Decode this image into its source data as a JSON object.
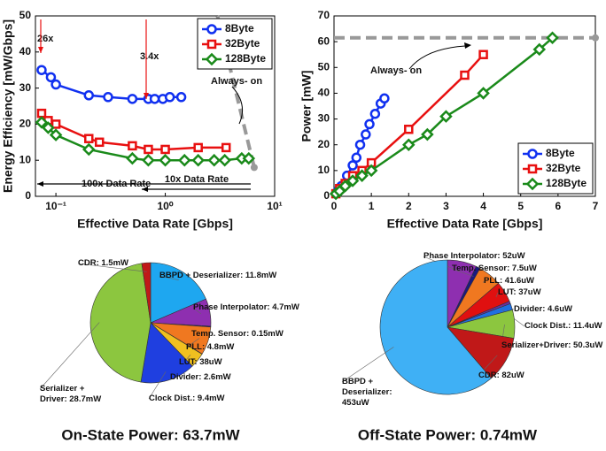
{
  "chart_data": [
    {
      "type": "line",
      "xlabel": "Effective Data Rate [Gbps]",
      "ylabel": "Energy Efficiency [mW/Gbps]",
      "xlog": true,
      "xlim": [
        0.065,
        10
      ],
      "ylim": [
        0,
        50
      ],
      "xticks": [
        {
          "value": 0.1,
          "label": "10⁻¹"
        },
        {
          "value": 1,
          "label": "10⁰"
        },
        {
          "value": 10,
          "label": "10¹"
        }
      ],
      "yticks": [
        0,
        10,
        20,
        30,
        40,
        50
      ],
      "legend": "upper right",
      "series": [
        {
          "name": "8Byte",
          "color": "#1030f0",
          "marker": "circle",
          "x": [
            0.074,
            0.09,
            0.1,
            0.2,
            0.3,
            0.5,
            0.7,
            0.8,
            0.95,
            1.1,
            1.4
          ],
          "values": [
            35,
            33,
            31,
            28,
            27.5,
            27,
            27,
            27,
            27,
            27.5,
            27.5
          ]
        },
        {
          "name": "32Byte",
          "color": "#e81010",
          "marker": "square",
          "x": [
            0.074,
            0.085,
            0.1,
            0.2,
            0.25,
            0.5,
            0.7,
            1,
            2,
            3.6
          ],
          "values": [
            23,
            21,
            20,
            16,
            15,
            14,
            13,
            13,
            13.5,
            13.5
          ]
        },
        {
          "name": "128Byte",
          "color": "#1a8a1a",
          "marker": "diamond",
          "x": [
            0.074,
            0.085,
            0.1,
            0.2,
            0.5,
            0.7,
            1,
            1.5,
            2,
            2.8,
            3.5,
            5,
            5.8
          ],
          "values": [
            20.5,
            19,
            17,
            13,
            10.5,
            10,
            10,
            10,
            10,
            10,
            10,
            10.5,
            10.5
          ]
        }
      ],
      "reference_line": {
        "color": "#999999",
        "x": [
          3.0,
          6.5
        ],
        "values": [
          50,
          8
        ]
      },
      "annotations": [
        "26x",
        "3.4x",
        "Always- on",
        "100x Data Rate",
        "10x Data Rate"
      ]
    },
    {
      "type": "line",
      "xlabel": "Effective Data Rate [Gbps]",
      "ylabel": "Power [mW]",
      "xlog": false,
      "xlim": [
        0,
        7
      ],
      "ylim": [
        0,
        70
      ],
      "xticks": [
        0,
        1,
        2,
        3,
        4,
        5,
        6,
        7
      ],
      "yticks": [
        0,
        10,
        20,
        30,
        40,
        50,
        60,
        70
      ],
      "legend": "lower right",
      "series": [
        {
          "name": "8Byte",
          "color": "#1030f0",
          "marker": "circle",
          "x": [
            0.1,
            0.2,
            0.35,
            0.5,
            0.6,
            0.7,
            0.85,
            0.95,
            1.1,
            1.25,
            1.35
          ],
          "values": [
            2,
            4,
            8,
            12,
            15,
            20,
            24,
            28,
            32,
            36,
            38
          ]
        },
        {
          "name": "32Byte",
          "color": "#e81010",
          "marker": "square",
          "x": [
            0.05,
            0.15,
            0.3,
            0.5,
            0.75,
            1,
            2,
            3.5,
            4
          ],
          "values": [
            1,
            3,
            5,
            8,
            10,
            13,
            26,
            47,
            55
          ]
        },
        {
          "name": "128Byte",
          "color": "#1a8a1a",
          "marker": "diamond",
          "x": [
            0.05,
            0.15,
            0.3,
            0.5,
            0.75,
            1,
            2,
            2.5,
            3,
            4,
            5.5,
            5.85
          ],
          "values": [
            1,
            2,
            4,
            6,
            8,
            10,
            20,
            24,
            31,
            40,
            57,
            61.5
          ]
        }
      ],
      "reference_line": {
        "color": "#999999",
        "x": [
          0,
          7
        ],
        "values": [
          61.5,
          61.5
        ]
      },
      "annotations": [
        "Always- on"
      ]
    },
    {
      "type": "pie",
      "title": "On-State Power: 63.7mW",
      "labels": [
        "BBPD + Deserializer: 11.8mW",
        "Phase Interpolator: 4.7mW",
        "Temp. Sensor: 0.15mW",
        "PLL: 4.8mW",
        "LUT: 38uW",
        "Divider: 2.6mW",
        "Clock Dist.: 9.4mW",
        "Serializer + Driver: 28.7mW",
        "CDR: 1.5mW"
      ],
      "values": [
        11.8,
        4.7,
        0.15,
        4.8,
        0.038,
        2.6,
        9.4,
        28.7,
        1.5
      ],
      "colors": [
        "#1ea7f0",
        "#8e2fb0",
        "#1a1a80",
        "#f07820",
        "#e01010",
        "#f0c020",
        "#1f3fe0",
        "#8cc63f",
        "#c01818"
      ]
    },
    {
      "type": "pie",
      "title": "Off-State Power: 0.74mW",
      "labels": [
        "Phase Interpolator: 52uW",
        "Temp. Sensor: 7.5uW",
        "PLL: 41.6uW",
        "LUT: 37uW",
        "Divider: 4.6uW",
        "Clock Dist.: 11.4uW",
        "Serializer+Driver: 50.3uW",
        "CDR: 82uW",
        "BBPD + Deserializer: 453uW"
      ],
      "values": [
        52,
        7.5,
        41.6,
        37,
        4.6,
        11.4,
        50.3,
        82,
        453
      ],
      "colors": [
        "#8e2fb0",
        "#1a1a80",
        "#f07820",
        "#e01010",
        "#6a2fa0",
        "#1f6fe0",
        "#8cc63f",
        "#c01818",
        "#3fb0f5"
      ]
    }
  ]
}
